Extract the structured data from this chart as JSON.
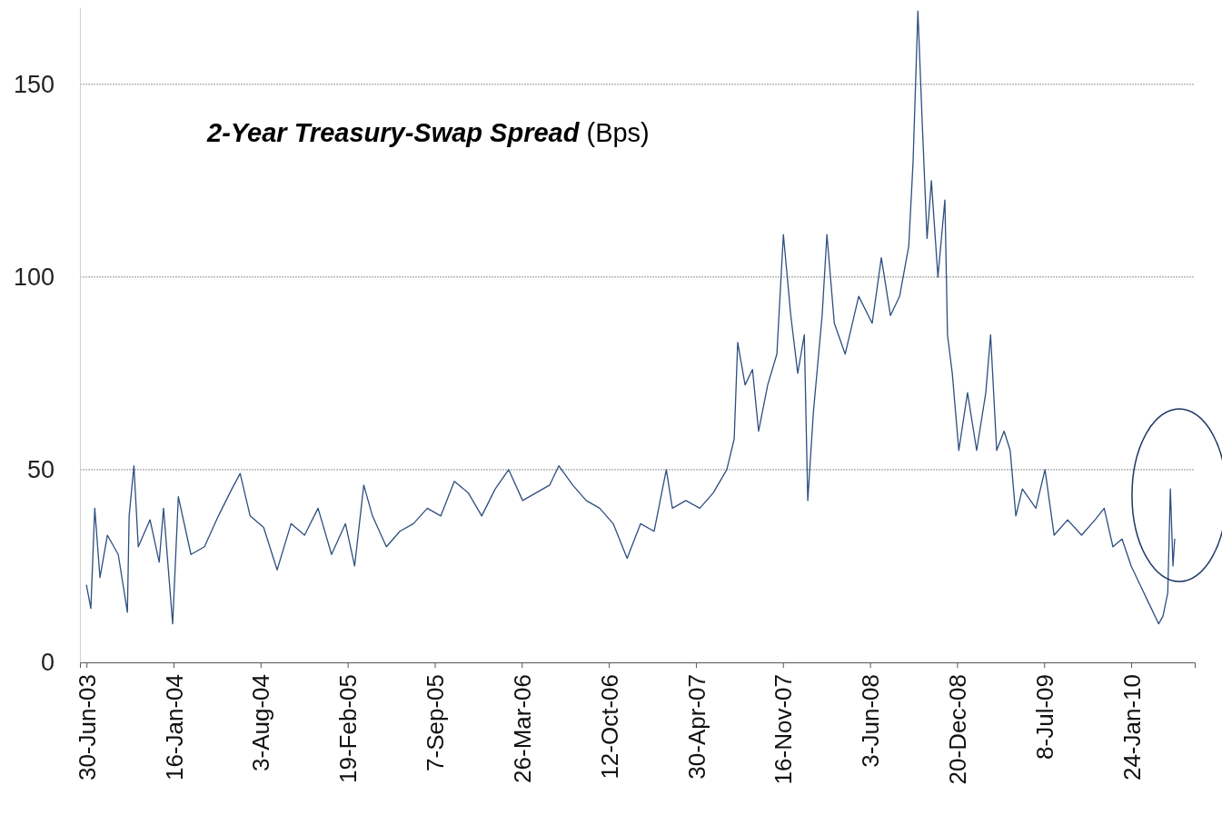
{
  "chart_data": {
    "type": "line",
    "title": "2-Year Treasury-Swap Spread",
    "ylabel": "(Bps)",
    "xlim": [
      "2003-06-15",
      "2010-06-19"
    ],
    "ylim": [
      0,
      170
    ],
    "yticks": [
      0,
      50,
      100,
      150
    ],
    "grid": "y",
    "marker": "none",
    "line_style": "solid",
    "xticks": [
      {
        "value": "2003-06-30",
        "label": "30-Jun-03"
      },
      {
        "value": "2004-01-16",
        "label": "16-Jan-04"
      },
      {
        "value": "2004-08-03",
        "label": "3-Aug-04"
      },
      {
        "value": "2005-02-19",
        "label": "19-Feb-05"
      },
      {
        "value": "2005-09-07",
        "label": "7-Sep-05"
      },
      {
        "value": "2006-03-26",
        "label": "26-Mar-06"
      },
      {
        "value": "2006-10-12",
        "label": "12-Oct-06"
      },
      {
        "value": "2007-04-30",
        "label": "30-Apr-07"
      },
      {
        "value": "2007-11-16",
        "label": "16-Nov-07"
      },
      {
        "value": "2008-06-03",
        "label": "3-Jun-08"
      },
      {
        "value": "2008-12-20",
        "label": "20-Dec-08"
      },
      {
        "value": "2009-07-08",
        "label": "8-Jul-09"
      },
      {
        "value": "2010-01-24",
        "label": "24-Jan-10"
      }
    ],
    "x": [
      "2003-06-30",
      "2003-07-10",
      "2003-07-19",
      "2003-07-31",
      "2003-08-17",
      "2003-09-11",
      "2003-10-02",
      "2003-10-06",
      "2003-10-17",
      "2003-10-27",
      "2003-11-23",
      "2003-12-14",
      "2003-12-24",
      "2004-01-14",
      "2004-01-27",
      "2004-02-25",
      "2004-03-27",
      "2004-04-28",
      "2004-05-29",
      "2004-06-17",
      "2004-07-10",
      "2004-08-10",
      "2004-09-10",
      "2004-10-12",
      "2004-11-12",
      "2004-12-13",
      "2005-01-13",
      "2005-02-14",
      "2005-03-07",
      "2005-03-28",
      "2005-04-17",
      "2005-05-19",
      "2005-06-19",
      "2005-07-20",
      "2005-08-21",
      "2005-09-21",
      "2005-10-22",
      "2005-11-23",
      "2005-12-24",
      "2006-01-24",
      "2006-02-24",
      "2006-03-28",
      "2006-04-28",
      "2006-05-29",
      "2006-06-19",
      "2006-07-21",
      "2006-08-21",
      "2006-09-21",
      "2006-10-22",
      "2006-11-23",
      "2006-12-24",
      "2007-01-24",
      "2007-02-21",
      "2007-03-07",
      "2007-04-07",
      "2007-05-09",
      "2007-06-09",
      "2007-07-10",
      "2007-07-27",
      "2007-08-04",
      "2007-08-21",
      "2007-09-07",
      "2007-09-21",
      "2007-10-12",
      "2007-11-02",
      "2007-11-17",
      "2007-12-04",
      "2007-12-20",
      "2008-01-04",
      "2008-01-12",
      "2008-01-25",
      "2008-02-14",
      "2008-02-25",
      "2008-03-13",
      "2008-04-07",
      "2008-05-08",
      "2008-06-08",
      "2008-06-29",
      "2008-07-20",
      "2008-08-10",
      "2008-08-31",
      "2008-09-10",
      "2008-09-21",
      "2008-10-01",
      "2008-10-12",
      "2008-10-22",
      "2008-11-06",
      "2008-11-22",
      "2008-11-28",
      "2008-12-09",
      "2008-12-24",
      "2009-01-13",
      "2009-02-03",
      "2009-02-24",
      "2009-03-07",
      "2009-03-21",
      "2009-04-07",
      "2009-04-21",
      "2009-05-04",
      "2009-05-19",
      "2009-06-19",
      "2009-07-10",
      "2009-07-31",
      "2009-08-31",
      "2009-10-02",
      "2009-11-02",
      "2009-11-23",
      "2009-12-13",
      "2010-01-03",
      "2010-01-24",
      "2010-02-14",
      "2010-03-07",
      "2010-03-28",
      "2010-04-07",
      "2010-04-18",
      "2010-04-24",
      "2010-04-30",
      "2010-05-04"
    ],
    "series": [
      {
        "color": "#2e4f7f",
        "values": [
          20,
          14,
          40,
          22,
          33,
          28,
          13,
          38,
          51,
          30,
          37,
          26,
          40,
          10,
          43,
          28,
          30,
          38,
          45,
          49,
          38,
          35,
          24,
          36,
          33,
          40,
          28,
          36,
          25,
          46,
          38,
          30,
          34,
          36,
          40,
          38,
          47,
          44,
          38,
          45,
          50,
          42,
          44,
          46,
          51,
          46,
          42,
          40,
          36,
          27,
          36,
          34,
          50,
          40,
          42,
          40,
          44,
          50,
          58,
          83,
          72,
          76,
          60,
          72,
          80,
          111,
          90,
          75,
          85,
          42,
          65,
          90,
          111,
          88,
          80,
          95,
          88,
          105,
          90,
          95,
          108,
          130,
          169,
          140,
          110,
          125,
          100,
          120,
          85,
          75,
          55,
          70,
          55,
          70,
          85,
          55,
          60,
          55,
          38,
          45,
          40,
          50,
          33,
          37,
          33,
          37,
          40,
          30,
          32,
          25,
          20,
          15,
          10,
          12,
          18,
          45,
          25,
          32
        ]
      }
    ]
  }
}
